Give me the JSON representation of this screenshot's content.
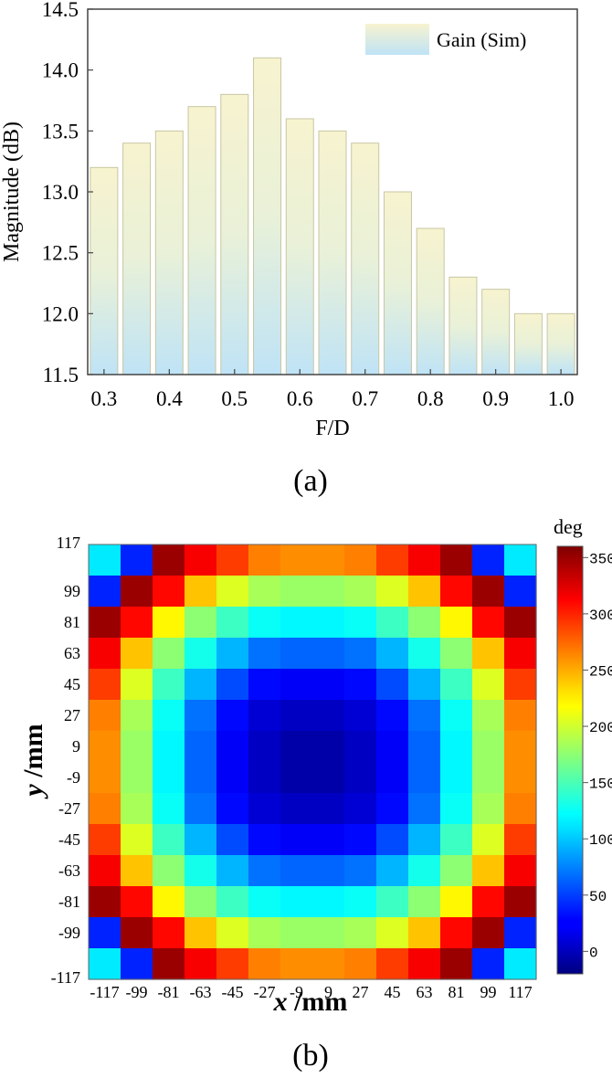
{
  "chart_data": [
    {
      "type": "bar",
      "xlabel": "F/D",
      "ylabel": "Magnitude (dB)",
      "legend": "Gain (Sim)",
      "legend_position": "top-right",
      "ylim": [
        11.5,
        14.5
      ],
      "yticks": [
        "11.5",
        "12.0",
        "12.5",
        "13.0",
        "13.5",
        "14.0",
        "14.5"
      ],
      "xticks": [
        "0.3",
        "0.4",
        "0.5",
        "0.6",
        "0.7",
        "0.8",
        "0.9",
        "1.0"
      ],
      "categories": [
        0.3,
        0.35,
        0.4,
        0.45,
        0.5,
        0.55,
        0.6,
        0.65,
        0.7,
        0.75,
        0.8,
        0.85,
        0.9,
        0.95,
        1.0
      ],
      "values": [
        13.2,
        13.4,
        13.5,
        13.7,
        13.8,
        14.1,
        13.6,
        13.5,
        13.4,
        13.0,
        12.7,
        12.3,
        12.2,
        12.0,
        12.0
      ],
      "caption": "(a)"
    },
    {
      "type": "heatmap",
      "xlabel_var": "x",
      "xlabel_unit": " /mm",
      "ylabel_var": "y",
      "ylabel_unit": " /mm",
      "colorbar_title": "deg",
      "colorbar_range": [
        -20,
        360
      ],
      "colorbar_ticks": [
        "0",
        "50",
        "100",
        "150",
        "200",
        "250",
        "300",
        "350"
      ],
      "x_ticks": [
        "-117",
        "-99",
        "-81",
        "-63",
        "-45",
        "-27",
        "-9",
        "9",
        "27",
        "45",
        "63",
        "81",
        "99",
        "117"
      ],
      "y_ticks": [
        "117",
        "99",
        "81",
        "63",
        "45",
        "27",
        "9",
        "-9",
        "-27",
        "-45",
        "-63",
        "-81",
        "-99",
        "-117"
      ],
      "cells": [
        [
          115,
          40,
          350,
          315,
          290,
          265,
          260,
          260,
          265,
          290,
          315,
          350,
          40,
          115
        ],
        [
          40,
          350,
          310,
          240,
          205,
          185,
          180,
          180,
          185,
          205,
          240,
          310,
          350,
          40
        ],
        [
          350,
          310,
          220,
          175,
          145,
          125,
          120,
          120,
          125,
          145,
          175,
          220,
          310,
          350
        ],
        [
          315,
          240,
          175,
          130,
          95,
          70,
          65,
          65,
          70,
          95,
          130,
          175,
          240,
          315
        ],
        [
          290,
          205,
          145,
          95,
          55,
          30,
          25,
          25,
          30,
          55,
          95,
          145,
          205,
          290
        ],
        [
          265,
          185,
          125,
          70,
          30,
          12,
          5,
          5,
          12,
          30,
          70,
          125,
          185,
          265
        ],
        [
          260,
          180,
          120,
          65,
          25,
          5,
          -5,
          -5,
          5,
          25,
          65,
          120,
          180,
          260
        ],
        [
          260,
          180,
          120,
          65,
          25,
          5,
          -5,
          -5,
          5,
          25,
          65,
          120,
          180,
          260
        ],
        [
          265,
          185,
          125,
          70,
          30,
          12,
          5,
          5,
          12,
          30,
          70,
          125,
          185,
          265
        ],
        [
          290,
          205,
          145,
          95,
          55,
          30,
          25,
          25,
          30,
          55,
          95,
          145,
          205,
          290
        ],
        [
          315,
          240,
          175,
          130,
          95,
          70,
          65,
          65,
          70,
          95,
          130,
          175,
          240,
          315
        ],
        [
          350,
          310,
          220,
          175,
          145,
          125,
          120,
          120,
          125,
          145,
          175,
          220,
          310,
          350
        ],
        [
          40,
          350,
          310,
          240,
          205,
          185,
          180,
          180,
          185,
          205,
          240,
          310,
          350,
          40
        ],
        [
          115,
          40,
          350,
          315,
          290,
          265,
          260,
          260,
          265,
          290,
          315,
          350,
          40,
          115
        ]
      ],
      "caption": "(b)"
    }
  ]
}
